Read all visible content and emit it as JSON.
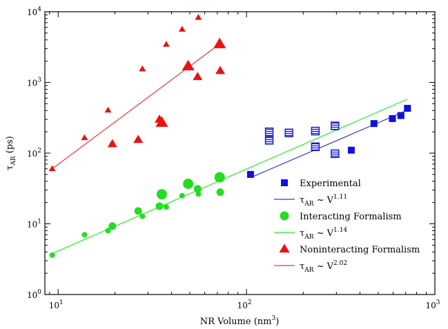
{
  "chart_data": {
    "type": "scatter",
    "xlabel": "NR Volume (nm",
    "xlabel_sup": "3",
    "xlabel_end": ")",
    "ylabel": "τ",
    "ylabel_sub": "AR",
    "ylabel_end": " (ps)",
    "x_scale": "log",
    "y_scale": "log",
    "xlim": [
      8.5,
      1000
    ],
    "ylim": [
      1,
      10000
    ],
    "x_ticks": [
      {
        "value": 10,
        "base": "10",
        "exp": "1"
      },
      {
        "value": 100,
        "base": "10",
        "exp": "2"
      },
      {
        "value": 1000,
        "base": "10",
        "exp": "3"
      }
    ],
    "y_ticks": [
      {
        "value": 1,
        "base": "10",
        "exp": "0"
      },
      {
        "value": 10,
        "base": "10",
        "exp": "1"
      },
      {
        "value": 100,
        "base": "10",
        "exp": "2"
      },
      {
        "value": 1000,
        "base": "10",
        "exp": "3"
      },
      {
        "value": 10000,
        "base": "10",
        "exp": "4"
      }
    ],
    "grid": false,
    "legend_position": "lower-right",
    "series": [
      {
        "name": "Experimental",
        "marker": "square",
        "color": "#1010e0",
        "points": [
          {
            "x": 105,
            "y": 50,
            "style": "filled"
          },
          {
            "x": 132,
            "y": 200,
            "style": "hatched"
          },
          {
            "x": 132,
            "y": 152,
            "style": "hatched"
          },
          {
            "x": 168,
            "y": 193,
            "style": "hatched"
          },
          {
            "x": 232,
            "y": 205,
            "style": "hatched"
          },
          {
            "x": 232,
            "y": 123,
            "style": "hatched"
          },
          {
            "x": 295,
            "y": 243,
            "style": "hatched"
          },
          {
            "x": 295,
            "y": 98,
            "style": "hatched"
          },
          {
            "x": 360,
            "y": 110,
            "style": "filled"
          },
          {
            "x": 475,
            "y": 262,
            "style": "filled"
          },
          {
            "x": 595,
            "y": 308,
            "style": "filled"
          },
          {
            "x": 660,
            "y": 340,
            "style": "filled"
          },
          {
            "x": 715,
            "y": 430,
            "style": "filled"
          }
        ]
      },
      {
        "name": "Interacting Formalism",
        "marker": "circle",
        "color": "#22dd22",
        "points": [
          {
            "x": 9.3,
            "y": 3.6,
            "size": "small"
          },
          {
            "x": 13.8,
            "y": 7.0,
            "size": "small"
          },
          {
            "x": 18.4,
            "y": 8.0,
            "size": "small"
          },
          {
            "x": 19.4,
            "y": 9.3,
            "size": "medium"
          },
          {
            "x": 26.6,
            "y": 15.2,
            "size": "medium"
          },
          {
            "x": 28,
            "y": 12.8,
            "size": "small"
          },
          {
            "x": 34.5,
            "y": 17.8,
            "size": "medium"
          },
          {
            "x": 35.5,
            "y": 26.2,
            "size": "large"
          },
          {
            "x": 37.5,
            "y": 17.3,
            "size": "small"
          },
          {
            "x": 45.5,
            "y": 25.0,
            "size": "small"
          },
          {
            "x": 49,
            "y": 36.8,
            "size": "large"
          },
          {
            "x": 55,
            "y": 31.2,
            "size": "medium"
          },
          {
            "x": 55.5,
            "y": 26.4,
            "size": "small"
          },
          {
            "x": 72,
            "y": 45.5,
            "size": "large"
          },
          {
            "x": 72.5,
            "y": 28.0,
            "size": "medium"
          }
        ]
      },
      {
        "name": "Noninteracting Formalism",
        "marker": "triangle",
        "color": "#ee1111",
        "points": [
          {
            "x": 9.3,
            "y": 60,
            "size": "small"
          },
          {
            "x": 13.8,
            "y": 165,
            "size": "small"
          },
          {
            "x": 18.4,
            "y": 405,
            "size": "small"
          },
          {
            "x": 19.4,
            "y": 135,
            "size": "medium"
          },
          {
            "x": 26.6,
            "y": 155,
            "size": "medium"
          },
          {
            "x": 28,
            "y": 1550,
            "size": "small"
          },
          {
            "x": 34.5,
            "y": 300,
            "size": "medium"
          },
          {
            "x": 35.5,
            "y": 270,
            "size": "large"
          },
          {
            "x": 37.5,
            "y": 3450,
            "size": "small"
          },
          {
            "x": 45.5,
            "y": 5650,
            "size": "small"
          },
          {
            "x": 49,
            "y": 1700,
            "size": "large"
          },
          {
            "x": 55,
            "y": 1200,
            "size": "medium"
          },
          {
            "x": 55.5,
            "y": 8300,
            "size": "small"
          },
          {
            "x": 72,
            "y": 3500,
            "size": "large"
          },
          {
            "x": 72.5,
            "y": 1460,
            "size": "medium"
          }
        ]
      }
    ],
    "fits": [
      {
        "label_base": "τ",
        "label_sub": "AR",
        "label_mid": " ~ V",
        "label_sup": "1.11",
        "color": "#3333dd",
        "x_range": [
          105,
          715
        ],
        "y_range": [
          45,
          405
        ]
      },
      {
        "label_base": "τ",
        "label_sub": "AR",
        "label_mid": " ~ V",
        "label_sup": "1.14",
        "color": "#22ee22",
        "x_range": [
          9.3,
          715
        ],
        "y_range": [
          3.8,
          580
        ]
      },
      {
        "label_base": "τ",
        "label_sub": "AR",
        "label_mid": " ~ V",
        "label_sup": "2.02",
        "color": "#ee3333",
        "x_range": [
          9.3,
          72.5
        ],
        "y_range": [
          60,
          3550
        ]
      }
    ],
    "legend": [
      {
        "kind": "marker",
        "series": 0
      },
      {
        "kind": "line",
        "fit": 0
      },
      {
        "kind": "marker",
        "series": 1
      },
      {
        "kind": "line",
        "fit": 1
      },
      {
        "kind": "marker",
        "series": 2
      },
      {
        "kind": "line",
        "fit": 2
      }
    ]
  }
}
